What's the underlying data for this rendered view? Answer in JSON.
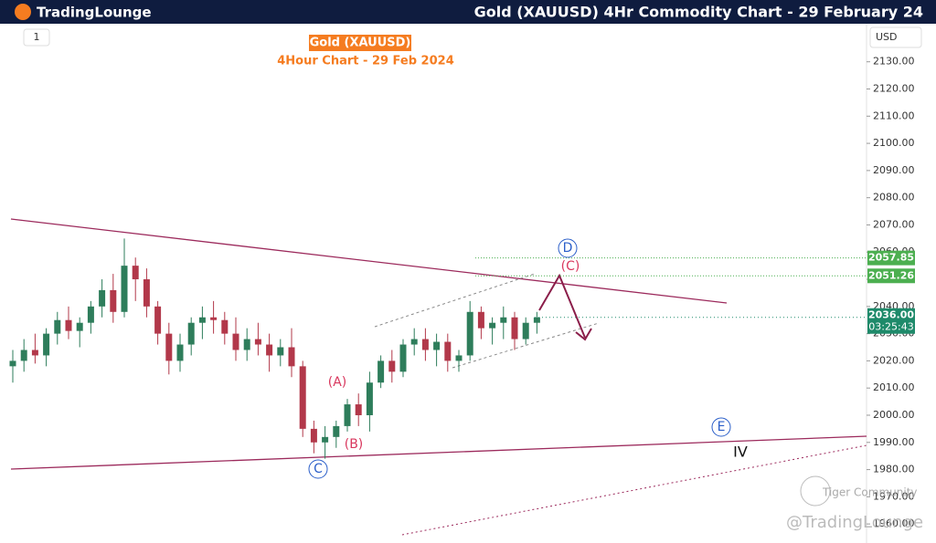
{
  "header": {
    "logo": "TradingLounge",
    "title": "Gold (XAUUSD) 4Hr Commodity Chart - 29 February 24"
  },
  "toolbar": {
    "interval": "1",
    "currency": "USD"
  },
  "chart_data": {
    "type": "candlestick",
    "title": "Gold (XAUUSD)",
    "subtitle": "4Hour Chart - 29 Feb 2024",
    "candles": [
      {
        "open": 2018,
        "high": 2024,
        "low": 2012,
        "close": 2020
      },
      {
        "open": 2020,
        "high": 2028,
        "low": 2016,
        "close": 2024
      },
      {
        "open": 2024,
        "high": 2030,
        "low": 2019,
        "close": 2022
      },
      {
        "open": 2022,
        "high": 2032,
        "low": 2018,
        "close": 2030
      },
      {
        "open": 2030,
        "high": 2038,
        "low": 2026,
        "close": 2035
      },
      {
        "open": 2035,
        "high": 2040,
        "low": 2028,
        "close": 2031
      },
      {
        "open": 2031,
        "high": 2036,
        "low": 2025,
        "close": 2034
      },
      {
        "open": 2034,
        "high": 2042,
        "low": 2030,
        "close": 2040
      },
      {
        "open": 2040,
        "high": 2050,
        "low": 2036,
        "close": 2046
      },
      {
        "open": 2046,
        "high": 2052,
        "low": 2034,
        "close": 2038
      },
      {
        "open": 2038,
        "high": 2065,
        "low": 2036,
        "close": 2055
      },
      {
        "open": 2055,
        "high": 2058,
        "low": 2042,
        "close": 2050
      },
      {
        "open": 2050,
        "high": 2054,
        "low": 2036,
        "close": 2040
      },
      {
        "open": 2040,
        "high": 2042,
        "low": 2026,
        "close": 2030
      },
      {
        "open": 2030,
        "high": 2034,
        "low": 2015,
        "close": 2020
      },
      {
        "open": 2020,
        "high": 2030,
        "low": 2016,
        "close": 2026
      },
      {
        "open": 2026,
        "high": 2036,
        "low": 2022,
        "close": 2034
      },
      {
        "open": 2034,
        "high": 2040,
        "low": 2028,
        "close": 2036
      },
      {
        "open": 2036,
        "high": 2042,
        "low": 2030,
        "close": 2035
      },
      {
        "open": 2035,
        "high": 2038,
        "low": 2026,
        "close": 2030
      },
      {
        "open": 2030,
        "high": 2036,
        "low": 2020,
        "close": 2024
      },
      {
        "open": 2024,
        "high": 2032,
        "low": 2020,
        "close": 2028
      },
      {
        "open": 2028,
        "high": 2034,
        "low": 2022,
        "close": 2026
      },
      {
        "open": 2026,
        "high": 2030,
        "low": 2016,
        "close": 2022
      },
      {
        "open": 2022,
        "high": 2028,
        "low": 2018,
        "close": 2025
      },
      {
        "open": 2025,
        "high": 2032,
        "low": 2014,
        "close": 2018
      },
      {
        "open": 2018,
        "high": 2020,
        "low": 1992,
        "close": 1995
      },
      {
        "open": 1995,
        "high": 1998,
        "low": 1986,
        "close": 1990
      },
      {
        "open": 1990,
        "high": 1996,
        "low": 1984,
        "close": 1992
      },
      {
        "open": 1992,
        "high": 1998,
        "low": 1988,
        "close": 1996
      },
      {
        "open": 1996,
        "high": 2006,
        "low": 1994,
        "close": 2004
      },
      {
        "open": 2004,
        "high": 2008,
        "low": 1996,
        "close": 2000
      },
      {
        "open": 2000,
        "high": 2016,
        "low": 1994,
        "close": 2012
      },
      {
        "open": 2012,
        "high": 2022,
        "low": 2010,
        "close": 2020
      },
      {
        "open": 2020,
        "high": 2024,
        "low": 2012,
        "close": 2016
      },
      {
        "open": 2016,
        "high": 2028,
        "low": 2014,
        "close": 2026
      },
      {
        "open": 2026,
        "high": 2032,
        "low": 2022,
        "close": 2028
      },
      {
        "open": 2028,
        "high": 2032,
        "low": 2020,
        "close": 2024
      },
      {
        "open": 2024,
        "high": 2030,
        "low": 2018,
        "close": 2027
      },
      {
        "open": 2027,
        "high": 2030,
        "low": 2016,
        "close": 2020
      },
      {
        "open": 2020,
        "high": 2024,
        "low": 2016,
        "close": 2022
      },
      {
        "open": 2022,
        "high": 2042,
        "low": 2020,
        "close": 2038
      },
      {
        "open": 2038,
        "high": 2040,
        "low": 2028,
        "close": 2032
      },
      {
        "open": 2032,
        "high": 2036,
        "low": 2026,
        "close": 2034
      },
      {
        "open": 2034,
        "high": 2040,
        "low": 2028,
        "close": 2036
      },
      {
        "open": 2036,
        "high": 2038,
        "low": 2024,
        "close": 2028
      },
      {
        "open": 2028,
        "high": 2036,
        "low": 2026,
        "close": 2034
      },
      {
        "open": 2034,
        "high": 2038,
        "low": 2030,
        "close": 2036
      }
    ],
    "up_color": "#2e7d5b",
    "down_color": "#b2384a",
    "ylim": [
      1953,
      2144
    ],
    "yticks": [
      {
        "value": 1960,
        "label": "1960.00"
      },
      {
        "value": 1970,
        "label": "1970.00"
      },
      {
        "value": 1980,
        "label": "1980.00"
      },
      {
        "value": 1990,
        "label": "1990.00"
      },
      {
        "value": 2000,
        "label": "2000.00"
      },
      {
        "value": 2010,
        "label": "2010.00"
      },
      {
        "value": 2020,
        "label": "2020.00"
      },
      {
        "value": 2030,
        "label": "2030.00"
      },
      {
        "value": 2040,
        "label": "2040.00"
      },
      {
        "value": 2050,
        "label": "2050.00"
      },
      {
        "value": 2060,
        "label": "2060.00"
      },
      {
        "value": 2070,
        "label": "2070.00"
      },
      {
        "value": 2080,
        "label": "2080.00"
      },
      {
        "value": 2090,
        "label": "2090.00"
      },
      {
        "value": 2100,
        "label": "2100.00"
      },
      {
        "value": 2110,
        "label": "2110.00"
      },
      {
        "value": 2120,
        "label": "2120.00"
      },
      {
        "value": 2130,
        "label": "2130.00"
      }
    ],
    "levels": [
      {
        "value": 2057.85,
        "color": "#4caf50"
      },
      {
        "value": 2051.26,
        "color": "#4caf50"
      }
    ],
    "last_price": {
      "value": 2036,
      "label": "2036.00",
      "countdown": "03:25:43",
      "color": "#1e8a6a"
    },
    "wave_labels": [
      "(A)",
      "(B)",
      "C",
      "(C)",
      "D",
      "E",
      "IV"
    ],
    "watermarks": [
      "Tiger Community",
      "@TradingLounge"
    ]
  }
}
